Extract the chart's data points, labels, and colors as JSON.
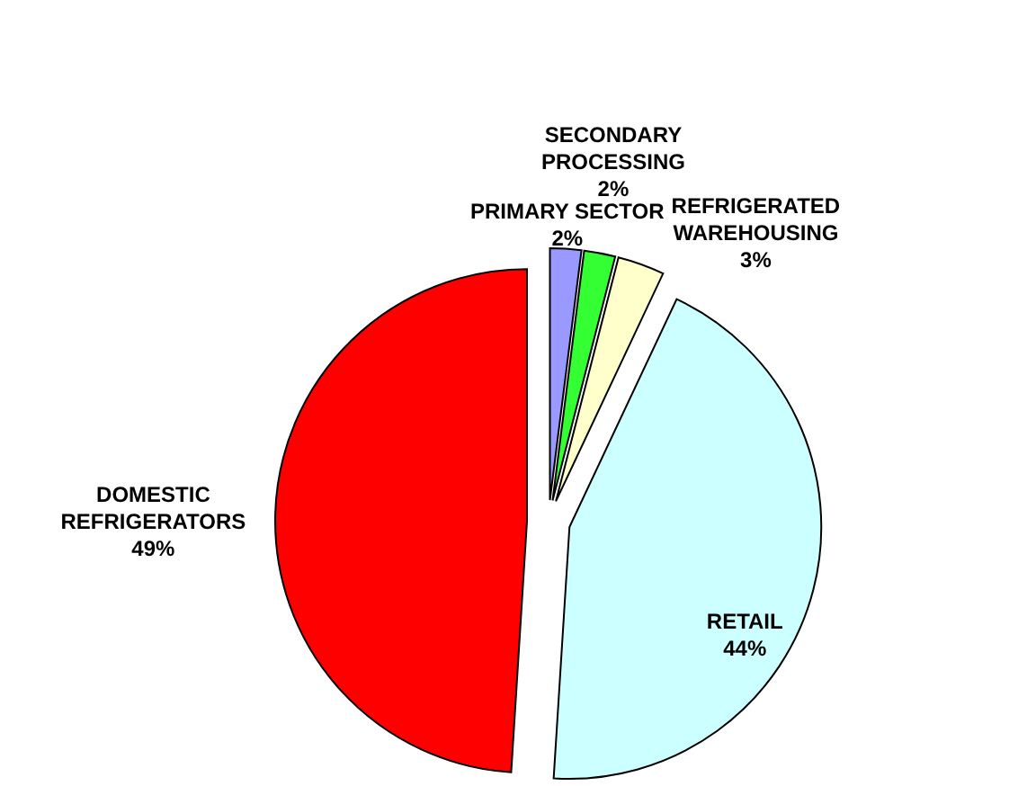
{
  "chart_data": {
    "type": "pie",
    "categories": [
      "PRIMARY SECTOR",
      "SECONDARY PROCESSING",
      "REFRIGERATED WAREHOUSING",
      "RETAIL",
      "DOMESTIC REFRIGERATORS"
    ],
    "values": [
      2,
      2,
      3,
      44,
      49
    ],
    "colors": [
      "#9999ff",
      "#33ff33",
      "#ffffcc",
      "#ccffff",
      "#ff0000"
    ],
    "value_labels": [
      "2%",
      "2%",
      "3%",
      "44%",
      "49%"
    ]
  }
}
